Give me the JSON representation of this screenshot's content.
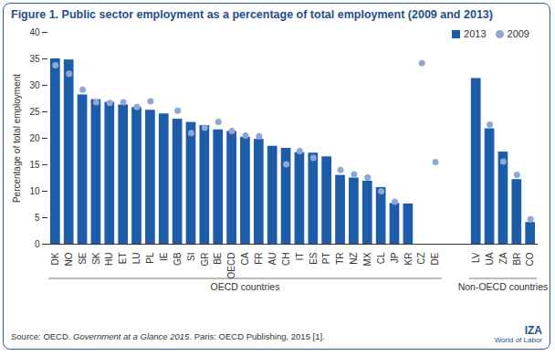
{
  "chart_data": {
    "type": "bar",
    "title": "Figure 1. Public sector employment as a percentage of total employment (2009 and 2013)",
    "y_label": "Percentage of total employment",
    "categories": [
      "DK",
      "NO",
      "SE",
      "SK",
      "HU",
      "ET",
      "LU",
      "PL",
      "IE",
      "GB",
      "SI",
      "GR",
      "BE",
      "OECD",
      "CA",
      "FR",
      "AU",
      "CH",
      "IT",
      "ES",
      "PT",
      "TR",
      "NZ",
      "MX",
      "CL",
      "JP",
      "KR",
      "CZ",
      "DE",
      "LV",
      "UA",
      "ZA",
      "BR",
      "CO"
    ],
    "groups": [
      {
        "name": "OECD countries",
        "first": "DK",
        "last": "DE"
      },
      {
        "name": "Non-OECD countries",
        "first": "LV",
        "last": "CO"
      }
    ],
    "series": [
      {
        "name": "2013",
        "type": "bar",
        "color": "#1d5ca8",
        "values": [
          35,
          34.8,
          28.2,
          27.3,
          26.8,
          26.3,
          25.8,
          25.3,
          24.6,
          23.6,
          23.0,
          22.4,
          21.6,
          21.3,
          20.2,
          19.8,
          18.5,
          18.1,
          17.3,
          17.2,
          16.5,
          13.0,
          12.5,
          11.9,
          10.7,
          7.7,
          7.6,
          null,
          null,
          31.3,
          21.8,
          17.4,
          12.2,
          4.1
        ]
      },
      {
        "name": "2009",
        "type": "scatter",
        "marker": "circle",
        "color": "#8fa7d4",
        "values": [
          33.8,
          32.2,
          29.2,
          26.8,
          26.7,
          26.8,
          25.9,
          27.0,
          null,
          25.2,
          21.0,
          22.0,
          23.1,
          21.4,
          20.5,
          20.4,
          null,
          15.1,
          17.6,
          16.3,
          null,
          14.0,
          13.2,
          12.6,
          10.0,
          8.0,
          null,
          34.2,
          15.5,
          null,
          22.6,
          15.6,
          13.1,
          4.7
        ]
      }
    ],
    "ylim": [
      0,
      40
    ],
    "yticks": [
      0,
      5,
      10,
      15,
      20,
      25,
      30,
      35,
      40
    ],
    "grid": false,
    "legend": "top-right",
    "source": [
      "Source: OECD. ",
      "Government at a Glance 2015",
      ". Paris: OECD Publishing, 2015 [1]."
    ],
    "logo": [
      "IZA",
      "World of Labor"
    ]
  }
}
